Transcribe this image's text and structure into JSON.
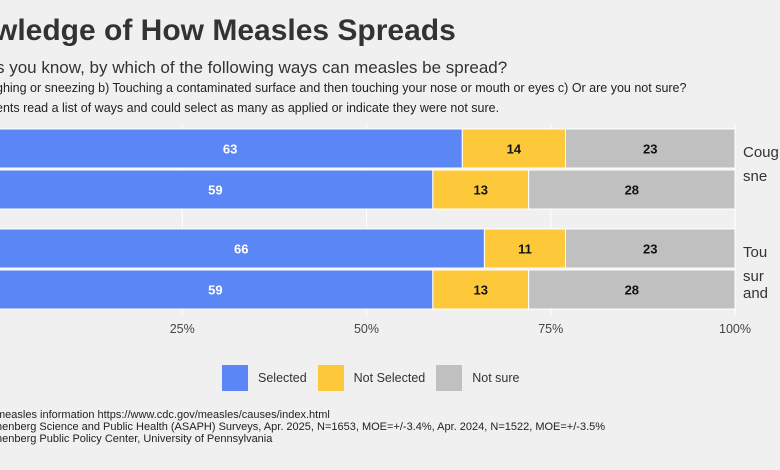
{
  "title": "wledge of How Measles Spreads",
  "subtitle": "s you know, by which of the following ways can measles be spread?",
  "question_detail": "ghing or sneezing b) Touching a contaminated surface and then touching your nose or mouth or eyes c) Or are you not sure?",
  "instructions": "ents read a list of ways and could select as many as applied or indicate they were not sure.",
  "notes": [
    " measles information https://www.cdc.gov/measles/causes/index.html",
    "nenberg Science and Public Health (ASAPH) Surveys, Apr. 2025, N=1653, MOE=+/-3.4%, Apr. 2024, N=1522, MOE=+/-3.5%",
    "nenberg Public Policy Center, University of Pennsylvania"
  ],
  "colors": {
    "selected": "#5b86f5",
    "not_selected": "#fdc93b",
    "not_sure": "#c0c0c0"
  },
  "chart_data": {
    "type": "bar",
    "orientation": "horizontal-stacked",
    "xlim": [
      0,
      100
    ],
    "x_ticks": [
      "25%",
      "50%",
      "75%",
      "100%"
    ],
    "x_tick_values": [
      25,
      50,
      75,
      100
    ],
    "series": [
      {
        "name": "Selected",
        "color": "#5b86f5"
      },
      {
        "name": "Not Selected",
        "color": "#fdc93b"
      },
      {
        "name": "Not sure",
        "color": "#c0c0c0"
      }
    ],
    "groups": [
      {
        "label_lines": [
          "Coug",
          "sne"
        ],
        "bars": [
          {
            "values": [
              63,
              14,
              23
            ]
          },
          {
            "values": [
              59,
              13,
              28
            ]
          }
        ]
      },
      {
        "label_lines": [
          "Tou",
          "sur",
          "and"
        ],
        "bars": [
          {
            "values": [
              66,
              11,
              23
            ]
          },
          {
            "values": [
              59,
              13,
              28
            ]
          }
        ]
      }
    ],
    "legend_position": "bottom"
  }
}
